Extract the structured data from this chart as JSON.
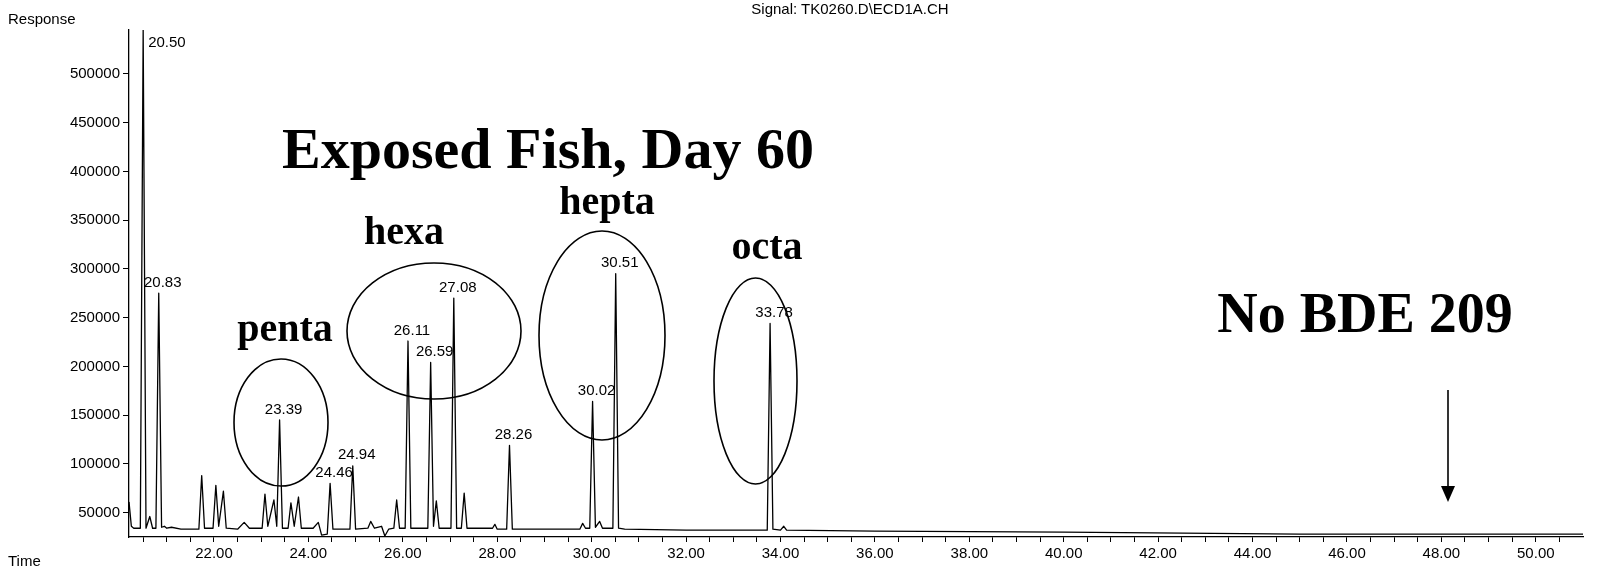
{
  "chart_data": {
    "type": "line",
    "title": "Exposed Fish, Day 60",
    "subtitle": "Signal: TK0260.D\\ECD1A.CH",
    "xlabel": "Time",
    "ylabel": "Response",
    "color": "#000000",
    "marker": "none",
    "annotations": [
      "penta",
      "hexa",
      "hepta",
      "octa",
      "No BDE 209",
      {
        "text": "20.50",
        "x": 20.5,
        "y": 545000
      },
      {
        "text": "20.83",
        "x": 20.83,
        "y": 275000
      },
      {
        "text": "23.39",
        "x": 23.39,
        "y": 145000
      },
      {
        "text": "24.46",
        "x": 24.46,
        "y": 80000
      },
      {
        "text": "24.94",
        "x": 24.94,
        "y": 98000
      },
      {
        "text": "26.11",
        "x": 26.11,
        "y": 226000
      },
      {
        "text": "26.59",
        "x": 26.59,
        "y": 204000
      },
      {
        "text": "27.08",
        "x": 27.08,
        "y": 270000
      },
      {
        "text": "28.26",
        "x": 28.26,
        "y": 119000
      },
      {
        "text": "30.02",
        "x": 30.02,
        "y": 164000
      },
      {
        "text": "30.51",
        "x": 30.51,
        "y": 295000
      },
      {
        "text": "33.78",
        "x": 33.78,
        "y": 244000
      }
    ],
    "x": [
      20.2,
      20.25,
      20.3,
      20.44,
      20.5,
      20.56,
      20.64,
      20.7,
      20.77,
      20.83,
      20.89,
      20.95,
      21.0,
      21.1,
      21.3,
      21.68,
      21.74,
      21.8,
      21.98,
      22.04,
      22.1,
      22.2,
      22.26,
      22.5,
      22.64,
      22.75,
      23.02,
      23.08,
      23.14,
      23.27,
      23.33,
      23.39,
      23.45,
      23.57,
      23.63,
      23.7,
      23.79,
      23.85,
      24.1,
      24.21,
      24.28,
      24.4,
      24.46,
      24.52,
      24.88,
      24.94,
      25.0,
      25.26,
      25.32,
      25.4,
      25.55,
      25.62,
      25.7,
      25.81,
      25.87,
      25.93,
      26.05,
      26.11,
      26.17,
      26.53,
      26.59,
      26.65,
      26.71,
      26.77,
      27.02,
      27.08,
      27.14,
      27.24,
      27.3,
      27.36,
      27.9,
      27.95,
      28.0,
      28.2,
      28.26,
      28.32,
      29.0,
      29.75,
      29.81,
      29.87,
      29.96,
      30.02,
      30.08,
      30.17,
      30.23,
      30.45,
      30.51,
      30.57,
      30.7,
      32.0,
      33.72,
      33.78,
      33.84,
      34.0,
      34.07,
      34.13,
      36.0,
      40.0,
      45.0,
      51.0
    ],
    "values": [
      61000,
      36000,
      34000,
      34000,
      545000,
      34000,
      46000,
      34000,
      34000,
      275000,
      35000,
      36000,
      34000,
      35000,
      33000,
      33000,
      88000,
      34000,
      34000,
      78000,
      36000,
      72000,
      34000,
      33000,
      40000,
      34000,
      34000,
      69000,
      36000,
      63000,
      36000,
      145000,
      34000,
      34000,
      60000,
      36000,
      66000,
      34000,
      34000,
      40000,
      27000,
      28000,
      80000,
      33000,
      33000,
      98000,
      33000,
      34000,
      41000,
      34000,
      36000,
      26000,
      33000,
      34000,
      63000,
      34000,
      34000,
      226000,
      34000,
      34000,
      204000,
      36000,
      62000,
      34000,
      34000,
      270000,
      34000,
      34000,
      70000,
      34000,
      34000,
      38000,
      33000,
      33000,
      119000,
      33000,
      33000,
      33000,
      39000,
      34000,
      34000,
      164000,
      35000,
      41000,
      34000,
      34000,
      295000,
      34000,
      33000,
      32000,
      32000,
      244000,
      33000,
      32000,
      36000,
      32000,
      31000,
      30000,
      28000,
      28000
    ],
    "xlim": [
      20.2,
      51
    ],
    "ylim": [
      25000,
      545000
    ],
    "xticks": [
      {
        "value": 20.5,
        "label": null
      },
      {
        "value": 21,
        "label": null
      },
      {
        "value": 21.5,
        "label": null
      },
      {
        "value": 22,
        "label": "22.00"
      },
      {
        "value": 22.5,
        "label": null
      },
      {
        "value": 23,
        "label": null
      },
      {
        "value": 23.5,
        "label": null
      },
      {
        "value": 24,
        "label": "24.00"
      },
      {
        "value": 24.5,
        "label": null
      },
      {
        "value": 25,
        "label": null
      },
      {
        "value": 25.5,
        "label": null
      },
      {
        "value": 26,
        "label": "26.00"
      },
      {
        "value": 26.5,
        "label": null
      },
      {
        "value": 27,
        "label": null
      },
      {
        "value": 27.5,
        "label": null
      },
      {
        "value": 28,
        "label": "28.00"
      },
      {
        "value": 28.5,
        "label": null
      },
      {
        "value": 29,
        "label": null
      },
      {
        "value": 29.5,
        "label": null
      },
      {
        "value": 30,
        "label": "30.00"
      },
      {
        "value": 30.5,
        "label": null
      },
      {
        "value": 31,
        "label": null
      },
      {
        "value": 31.5,
        "label": null
      },
      {
        "value": 32,
        "label": "32.00"
      },
      {
        "value": 32.5,
        "label": null
      },
      {
        "value": 33,
        "label": null
      },
      {
        "value": 33.5,
        "label": null
      },
      {
        "value": 34,
        "label": "34.00"
      },
      {
        "value": 34.5,
        "label": null
      },
      {
        "value": 35,
        "label": null
      },
      {
        "value": 35.5,
        "label": null
      },
      {
        "value": 36,
        "label": "36.00"
      },
      {
        "value": 36.5,
        "label": null
      },
      {
        "value": 37,
        "label": null
      },
      {
        "value": 37.5,
        "label": null
      },
      {
        "value": 38,
        "label": "38.00"
      },
      {
        "value": 38.5,
        "label": null
      },
      {
        "value": 39,
        "label": null
      },
      {
        "value": 39.5,
        "label": null
      },
      {
        "value": 40,
        "label": "40.00"
      },
      {
        "value": 40.5,
        "label": null
      },
      {
        "value": 41,
        "label": null
      },
      {
        "value": 41.5,
        "label": null
      },
      {
        "value": 42,
        "label": "42.00"
      },
      {
        "value": 42.5,
        "label": null
      },
      {
        "value": 43,
        "label": null
      },
      {
        "value": 43.5,
        "label": null
      },
      {
        "value": 44,
        "label": "44.00"
      },
      {
        "value": 44.5,
        "label": null
      },
      {
        "value": 45,
        "label": null
      },
      {
        "value": 45.5,
        "label": null
      },
      {
        "value": 46,
        "label": "46.00"
      },
      {
        "value": 46.5,
        "label": null
      },
      {
        "value": 47,
        "label": null
      },
      {
        "value": 47.5,
        "label": null
      },
      {
        "value": 48,
        "label": "48.00"
      },
      {
        "value": 48.5,
        "label": null
      },
      {
        "value": 49,
        "label": null
      },
      {
        "value": 49.5,
        "label": null
      },
      {
        "value": 50,
        "label": "50.00"
      },
      {
        "value": 50.5,
        "label": null
      }
    ],
    "yticks": [
      50000,
      100000,
      150000,
      200000,
      250000,
      300000,
      350000,
      400000,
      450000,
      500000
    ]
  }
}
